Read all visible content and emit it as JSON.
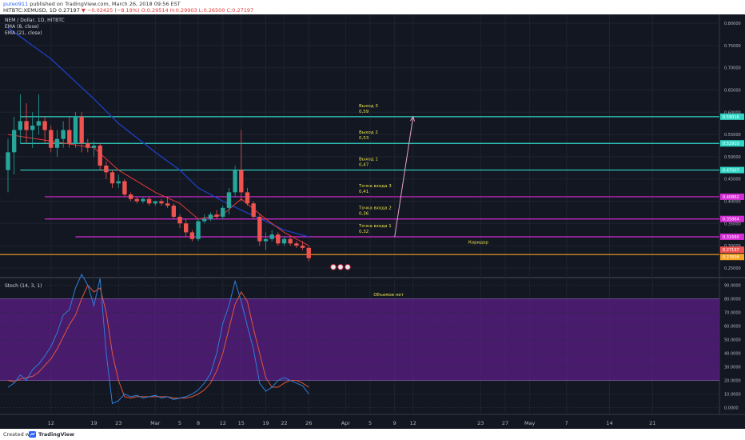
{
  "header": {
    "user": "pureo911",
    "published": " published on TradingView.com, March 26, 2018 09:56 EST",
    "symbol_line": "HITBTC:XEMUSD, 1D 0.27197",
    "change": "▼ −0.02425 (−8.19%)",
    "ohlc": " O:0.29514 H:0.29903 L:0.26500 C:0.27197"
  },
  "footer": {
    "created": "Created with",
    "brand": "TradingView"
  },
  "colors": {
    "background": "#131722",
    "up": "#26a69a",
    "down": "#ef5350",
    "ema_fast": "#e53935",
    "ema_slow": "#1e3fbf",
    "exit": "#2fd6c5",
    "entry": "#d62bd6",
    "corridor": "#f6a323",
    "k_line": "#2d7fd8",
    "d_line": "#e0563a",
    "stoch_band": "#5b1e87"
  },
  "chart_data": [
    {
      "type": "candlestick",
      "title": "NEM / Dollar, 1D, HITBTC",
      "indicators": [
        "EMA (8, close)",
        "EMA (21, close)"
      ],
      "ylim": [
        0.23,
        0.82
      ],
      "yticks": [
        0.8,
        0.75,
        0.7,
        0.65,
        0.6,
        0.55,
        0.5,
        0.45,
        0.4,
        0.35,
        0.3,
        0.25
      ],
      "ytick_labels": [
        "0.80000",
        "0.75000",
        "0.70000",
        "0.65000",
        "0.60000",
        "0.55000",
        "0.50000",
        "0.45000",
        "0.40000",
        "0.35000",
        "0.30000",
        "0.25000"
      ],
      "x_start": "2018-02-05",
      "x_end": "2018-05-28",
      "xticks": [
        {
          "date": "2018-02-12",
          "label": "12"
        },
        {
          "date": "2018-02-19",
          "label": "19"
        },
        {
          "date": "2018-02-23",
          "label": "23"
        },
        {
          "date": "2018-03-01",
          "label": "Mar"
        },
        {
          "date": "2018-03-05",
          "label": "5"
        },
        {
          "date": "2018-03-08",
          "label": "8"
        },
        {
          "date": "2018-03-12",
          "label": "12"
        },
        {
          "date": "2018-03-15",
          "label": "15"
        },
        {
          "date": "2018-03-19",
          "label": "19"
        },
        {
          "date": "2018-03-22",
          "label": "22"
        },
        {
          "date": "2018-03-26",
          "label": "26"
        },
        {
          "date": "2018-04-01",
          "label": "Apr"
        },
        {
          "date": "2018-04-05",
          "label": "5"
        },
        {
          "date": "2018-04-09",
          "label": "9"
        },
        {
          "date": "2018-04-12",
          "label": "12"
        },
        {
          "date": "2018-04-23",
          "label": "23"
        },
        {
          "date": "2018-04-27",
          "label": "27"
        },
        {
          "date": "2018-05-01",
          "label": "May"
        },
        {
          "date": "2018-05-07",
          "label": "7"
        },
        {
          "date": "2018-05-14",
          "label": "14"
        },
        {
          "date": "2018-05-21",
          "label": "21"
        }
      ],
      "candles": [
        {
          "d": "2018-02-05",
          "o": 0.47,
          "h": 0.54,
          "l": 0.42,
          "c": 0.51
        },
        {
          "d": "2018-02-06",
          "o": 0.51,
          "h": 0.59,
          "l": 0.46,
          "c": 0.56
        },
        {
          "d": "2018-02-07",
          "o": 0.56,
          "h": 0.64,
          "l": 0.53,
          "c": 0.58
        },
        {
          "d": "2018-02-08",
          "o": 0.58,
          "h": 0.62,
          "l": 0.53,
          "c": 0.56
        },
        {
          "d": "2018-02-09",
          "o": 0.56,
          "h": 0.6,
          "l": 0.52,
          "c": 0.57
        },
        {
          "d": "2018-02-10",
          "o": 0.57,
          "h": 0.64,
          "l": 0.55,
          "c": 0.58
        },
        {
          "d": "2018-02-11",
          "o": 0.58,
          "h": 0.59,
          "l": 0.53,
          "c": 0.56
        },
        {
          "d": "2018-02-12",
          "o": 0.56,
          "h": 0.57,
          "l": 0.51,
          "c": 0.52
        },
        {
          "d": "2018-02-13",
          "o": 0.52,
          "h": 0.56,
          "l": 0.5,
          "c": 0.54
        },
        {
          "d": "2018-02-14",
          "o": 0.54,
          "h": 0.58,
          "l": 0.52,
          "c": 0.56
        },
        {
          "d": "2018-02-15",
          "o": 0.56,
          "h": 0.59,
          "l": 0.52,
          "c": 0.53
        },
        {
          "d": "2018-02-16",
          "o": 0.53,
          "h": 0.6,
          "l": 0.52,
          "c": 0.59
        },
        {
          "d": "2018-02-17",
          "o": 0.59,
          "h": 0.6,
          "l": 0.51,
          "c": 0.53
        },
        {
          "d": "2018-02-18",
          "o": 0.53,
          "h": 0.54,
          "l": 0.51,
          "c": 0.52
        },
        {
          "d": "2018-02-19",
          "o": 0.52,
          "h": 0.535,
          "l": 0.5,
          "c": 0.525
        },
        {
          "d": "2018-02-20",
          "o": 0.525,
          "h": 0.53,
          "l": 0.47,
          "c": 0.48
        },
        {
          "d": "2018-02-21",
          "o": 0.48,
          "h": 0.49,
          "l": 0.45,
          "c": 0.465
        },
        {
          "d": "2018-02-22",
          "o": 0.465,
          "h": 0.47,
          "l": 0.43,
          "c": 0.44
        },
        {
          "d": "2018-02-23",
          "o": 0.44,
          "h": 0.46,
          "l": 0.43,
          "c": 0.445
        },
        {
          "d": "2018-02-24",
          "o": 0.445,
          "h": 0.45,
          "l": 0.41,
          "c": 0.415
        },
        {
          "d": "2018-02-25",
          "o": 0.415,
          "h": 0.42,
          "l": 0.4,
          "c": 0.405
        },
        {
          "d": "2018-02-26",
          "o": 0.405,
          "h": 0.41,
          "l": 0.395,
          "c": 0.4
        },
        {
          "d": "2018-02-27",
          "o": 0.4,
          "h": 0.41,
          "l": 0.395,
          "c": 0.405
        },
        {
          "d": "2018-02-28",
          "o": 0.405,
          "h": 0.41,
          "l": 0.39,
          "c": 0.395
        },
        {
          "d": "2018-03-01",
          "o": 0.395,
          "h": 0.4,
          "l": 0.39,
          "c": 0.4
        },
        {
          "d": "2018-03-02",
          "o": 0.4,
          "h": 0.405,
          "l": 0.39,
          "c": 0.395
        },
        {
          "d": "2018-03-03",
          "o": 0.395,
          "h": 0.41,
          "l": 0.385,
          "c": 0.39
        },
        {
          "d": "2018-03-04",
          "o": 0.39,
          "h": 0.395,
          "l": 0.36,
          "c": 0.365
        },
        {
          "d": "2018-03-05",
          "o": 0.365,
          "h": 0.37,
          "l": 0.34,
          "c": 0.35
        },
        {
          "d": "2018-03-06",
          "o": 0.35,
          "h": 0.36,
          "l": 0.32,
          "c": 0.33
        },
        {
          "d": "2018-03-07",
          "o": 0.33,
          "h": 0.335,
          "l": 0.31,
          "c": 0.315
        },
        {
          "d": "2018-03-08",
          "o": 0.315,
          "h": 0.36,
          "l": 0.31,
          "c": 0.355
        },
        {
          "d": "2018-03-09",
          "o": 0.355,
          "h": 0.37,
          "l": 0.35,
          "c": 0.36
        },
        {
          "d": "2018-03-10",
          "o": 0.36,
          "h": 0.375,
          "l": 0.355,
          "c": 0.37
        },
        {
          "d": "2018-03-11",
          "o": 0.37,
          "h": 0.38,
          "l": 0.36,
          "c": 0.365
        },
        {
          "d": "2018-03-12",
          "o": 0.365,
          "h": 0.39,
          "l": 0.36,
          "c": 0.385
        },
        {
          "d": "2018-03-13",
          "o": 0.385,
          "h": 0.43,
          "l": 0.37,
          "c": 0.42
        },
        {
          "d": "2018-03-14",
          "o": 0.42,
          "h": 0.48,
          "l": 0.41,
          "c": 0.47
        },
        {
          "d": "2018-03-15",
          "o": 0.47,
          "h": 0.56,
          "l": 0.4,
          "c": 0.42
        },
        {
          "d": "2018-03-16",
          "o": 0.42,
          "h": 0.43,
          "l": 0.39,
          "c": 0.395
        },
        {
          "d": "2018-03-17",
          "o": 0.395,
          "h": 0.4,
          "l": 0.36,
          "c": 0.365
        },
        {
          "d": "2018-03-18",
          "o": 0.365,
          "h": 0.37,
          "l": 0.3,
          "c": 0.31
        },
        {
          "d": "2018-03-19",
          "o": 0.31,
          "h": 0.33,
          "l": 0.29,
          "c": 0.315
        },
        {
          "d": "2018-03-20",
          "o": 0.315,
          "h": 0.335,
          "l": 0.31,
          "c": 0.325
        },
        {
          "d": "2018-03-21",
          "o": 0.325,
          "h": 0.33,
          "l": 0.3,
          "c": 0.305
        },
        {
          "d": "2018-03-22",
          "o": 0.305,
          "h": 0.32,
          "l": 0.3,
          "c": 0.315
        },
        {
          "d": "2018-03-23",
          "o": 0.315,
          "h": 0.32,
          "l": 0.3,
          "c": 0.305
        },
        {
          "d": "2018-03-24",
          "o": 0.305,
          "h": 0.31,
          "l": 0.295,
          "c": 0.3
        },
        {
          "d": "2018-03-25",
          "o": 0.3,
          "h": 0.31,
          "l": 0.29,
          "c": 0.295
        },
        {
          "d": "2018-03-26",
          "o": 0.29514,
          "h": 0.29903,
          "l": 0.265,
          "c": 0.27197
        }
      ],
      "ema_fast_points": [
        [
          "2018-02-05",
          0.55
        ],
        [
          "2018-02-12",
          0.535
        ],
        [
          "2018-02-19",
          0.52
        ],
        [
          "2018-02-23",
          0.47
        ],
        [
          "2018-03-01",
          0.42
        ],
        [
          "2018-03-05",
          0.395
        ],
        [
          "2018-03-08",
          0.36
        ],
        [
          "2018-03-12",
          0.37
        ],
        [
          "2018-03-15",
          0.405
        ],
        [
          "2018-03-19",
          0.36
        ],
        [
          "2018-03-22",
          0.33
        ],
        [
          "2018-03-26",
          0.3
        ]
      ],
      "ema_slow_points": [
        [
          "2018-02-05",
          0.79
        ],
        [
          "2018-02-12",
          0.72
        ],
        [
          "2018-02-19",
          0.63
        ],
        [
          "2018-02-23",
          0.575
        ],
        [
          "2018-03-01",
          0.51
        ],
        [
          "2018-03-05",
          0.47
        ],
        [
          "2018-03-08",
          0.43
        ],
        [
          "2018-03-12",
          0.4
        ],
        [
          "2018-03-15",
          0.38
        ],
        [
          "2018-03-19",
          0.355
        ],
        [
          "2018-03-22",
          0.335
        ],
        [
          "2018-03-26",
          0.32
        ]
      ],
      "levels": [
        {
          "kind": "exit",
          "name": "Выход 3",
          "value_text": "0,59",
          "price": 0.59,
          "tag": "0.59016",
          "label_date": "2018-04-05"
        },
        {
          "kind": "exit",
          "name": "Выход 2",
          "value_text": "0,53",
          "price": 0.53,
          "tag": "0.52910",
          "label_date": "2018-04-05"
        },
        {
          "kind": "exit",
          "name": "Выход 1",
          "value_text": "0,47",
          "price": 0.47,
          "tag": "0.47007",
          "label_date": "2018-04-05"
        },
        {
          "kind": "entry",
          "name": "Точка входа 3",
          "value_text": "0,41",
          "price": 0.41,
          "tag": "0.40862",
          "label_date": "2018-04-05"
        },
        {
          "kind": "entry",
          "name": "Точка входа 2",
          "value_text": "0,36",
          "price": 0.36,
          "tag": "0.35864",
          "label_date": "2018-04-05"
        },
        {
          "kind": "entry",
          "name": "Точка входа 1",
          "value_text": "0,32",
          "price": 0.32,
          "tag": "0.31660",
          "label_date": "2018-04-05"
        }
      ],
      "corridor": {
        "label": "Коридор",
        "price": 0.28,
        "tag": "0.27197",
        "tag2": "0.27608"
      },
      "arrow": {
        "from": [
          "2018-04-09",
          0.32
        ],
        "to": [
          "2018-04-12",
          0.59
        ]
      }
    },
    {
      "type": "line",
      "title": "Stoch (14, 3, 1)",
      "annotation": "Объемов нет",
      "ylim": [
        -5,
        95
      ],
      "band": [
        20,
        80
      ],
      "yticks": [
        90,
        80,
        70,
        60,
        50,
        40,
        30,
        20,
        10,
        0
      ],
      "ytick_labels": [
        "90.0000",
        "80.0000",
        "70.0000",
        "60.0000",
        "50.0000",
        "40.0000",
        "30.0000",
        "20.0000",
        "10.0000",
        "0.0000"
      ],
      "k_values": [
        15,
        18,
        24,
        20,
        28,
        32,
        38,
        45,
        55,
        68,
        72,
        88,
        98,
        90,
        75,
        95,
        40,
        3,
        5,
        10,
        8,
        9,
        7,
        8,
        9,
        7,
        8,
        6,
        7,
        8,
        10,
        13,
        18,
        25,
        40,
        62,
        75,
        93,
        78,
        60,
        43,
        18,
        12,
        15,
        20,
        22,
        20,
        18,
        16,
        10
      ],
      "d_values": [
        20,
        19,
        21,
        22,
        23,
        26,
        31,
        36,
        43,
        52,
        61,
        68,
        80,
        90,
        85,
        88,
        70,
        40,
        20,
        8,
        7,
        8,
        8,
        8,
        8,
        8,
        8,
        7,
        7,
        7,
        8,
        10,
        13,
        18,
        27,
        40,
        58,
        76,
        85,
        78,
        58,
        40,
        22,
        15,
        15,
        18,
        20,
        20,
        18,
        15
      ]
    }
  ]
}
